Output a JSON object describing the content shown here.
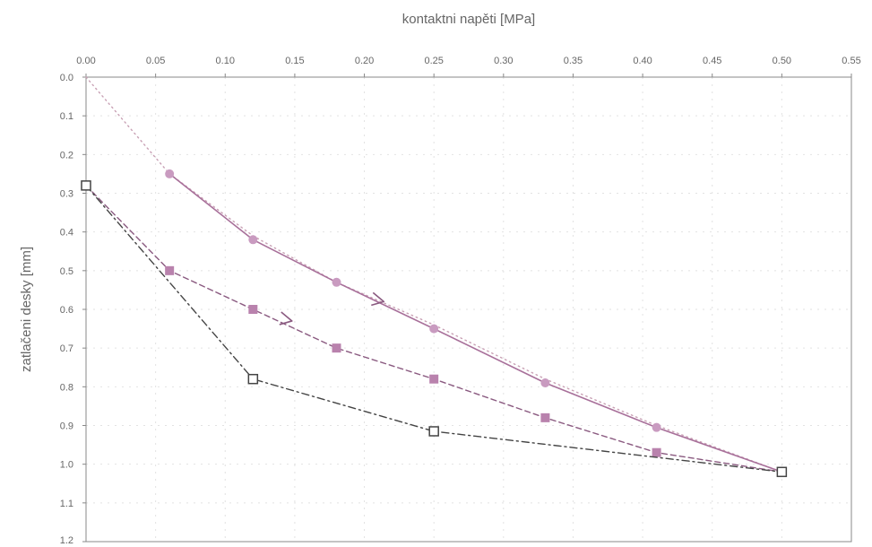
{
  "chart_data": {
    "type": "line",
    "xlabel": "kontaktni napěti [MPa]",
    "ylabel": "zatlačeni desky [mm]",
    "xlim": [
      0,
      0.55
    ],
    "ylim": [
      0,
      1.2
    ],
    "x_axis_position": "top",
    "y_inverted": true,
    "grid": true,
    "x_ticks": [
      "0.00",
      "0.05",
      "0.10",
      "0.15",
      "0.20",
      "0.25",
      "0.30",
      "0.35",
      "0.40",
      "0.45",
      "0.50",
      "0.55"
    ],
    "x_tick_values": [
      0,
      0.05,
      0.1,
      0.15,
      0.2,
      0.25,
      0.3,
      0.35,
      0.4,
      0.45,
      0.5,
      0.55
    ],
    "y_ticks": [
      "0.0",
      "0.1",
      "0.2",
      "0.3",
      "0.4",
      "0.5",
      "0.6",
      "0.7",
      "0.8",
      "0.9",
      "1.0",
      "1.1",
      "1.2"
    ],
    "y_tick_values": [
      0,
      0.1,
      0.2,
      0.3,
      0.4,
      0.5,
      0.6,
      0.7,
      0.8,
      0.9,
      1.0,
      1.1,
      1.2
    ],
    "series": [
      {
        "style": "dotted-line",
        "color": "#c8a0b4",
        "marker": "none",
        "x": [
          0.0,
          0.06,
          0.12,
          0.18,
          0.25,
          0.33,
          0.41,
          0.5
        ],
        "y": [
          0.0,
          0.25,
          0.41,
          0.53,
          0.64,
          0.78,
          0.9,
          1.02
        ]
      },
      {
        "style": "solid",
        "color": "#a8709a",
        "marker": "circle",
        "marker_color": "#c99bc0",
        "x": [
          0.06,
          0.12,
          0.18,
          0.25,
          0.33,
          0.41,
          0.5
        ],
        "y": [
          0.25,
          0.42,
          0.53,
          0.65,
          0.79,
          0.905,
          1.02
        ]
      },
      {
        "style": "dashed",
        "color": "#8a5a80",
        "marker": "square-filled",
        "marker_color": "#b982ad",
        "x": [
          0.0,
          0.06,
          0.12,
          0.18,
          0.25,
          0.33,
          0.41,
          0.5
        ],
        "y": [
          0.28,
          0.5,
          0.6,
          0.7,
          0.78,
          0.88,
          0.97,
          1.02
        ]
      },
      {
        "style": "dash-dot",
        "color": "#444444",
        "marker": "square-open",
        "marker_color": "#444444",
        "x": [
          0.0,
          0.12,
          0.25,
          0.5
        ],
        "y": [
          0.28,
          0.78,
          0.915,
          1.02
        ]
      }
    ],
    "annotations": [
      {
        "type": "arrow",
        "at": [
          0.214,
          0.58
        ],
        "color": "#8a5a80"
      },
      {
        "type": "arrow",
        "at": [
          0.148,
          0.63
        ],
        "color": "#8a5a80"
      }
    ]
  }
}
